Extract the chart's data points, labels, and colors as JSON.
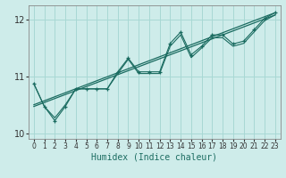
{
  "xlabel": "Humidex (Indice chaleur)",
  "bg_color": "#ceecea",
  "line_color": "#1a6b60",
  "grid_color": "#a8d8d4",
  "spine_color": "#888888",
  "xlim": [
    -0.5,
    23.5
  ],
  "ylim": [
    9.9,
    12.25
  ],
  "yticks": [
    10,
    11,
    12
  ],
  "xticks": [
    0,
    1,
    2,
    3,
    4,
    5,
    6,
    7,
    8,
    9,
    10,
    11,
    12,
    13,
    14,
    15,
    16,
    17,
    18,
    19,
    20,
    21,
    22,
    23
  ],
  "series1_x": [
    0,
    1,
    2,
    3,
    4,
    5,
    6,
    7,
    8,
    9,
    10,
    11,
    12,
    13,
    14,
    15,
    16,
    17,
    18,
    19,
    20,
    21,
    22,
    23
  ],
  "series1_y": [
    10.87,
    10.47,
    10.22,
    10.47,
    10.78,
    10.78,
    10.78,
    10.78,
    11.08,
    11.32,
    11.08,
    11.08,
    11.08,
    11.58,
    11.78,
    11.38,
    11.53,
    11.73,
    11.73,
    11.57,
    11.62,
    11.82,
    12.02,
    12.12
  ],
  "series2_x": [
    0,
    1,
    2,
    3,
    4,
    5,
    6,
    7,
    8,
    9,
    10,
    11,
    12,
    13,
    14,
    15,
    16,
    17,
    18,
    19,
    20,
    21,
    22,
    23
  ],
  "series2_y": [
    10.87,
    10.47,
    10.27,
    10.5,
    10.78,
    10.78,
    10.78,
    10.78,
    11.05,
    11.3,
    11.05,
    11.05,
    11.05,
    11.53,
    11.73,
    11.33,
    11.5,
    11.68,
    11.68,
    11.53,
    11.58,
    11.78,
    11.98,
    12.08
  ],
  "trend1_x": [
    0,
    23
  ],
  "trend1_y": [
    10.47,
    12.08
  ],
  "trend2_x": [
    0,
    23
  ],
  "trend2_y": [
    10.5,
    12.12
  ]
}
